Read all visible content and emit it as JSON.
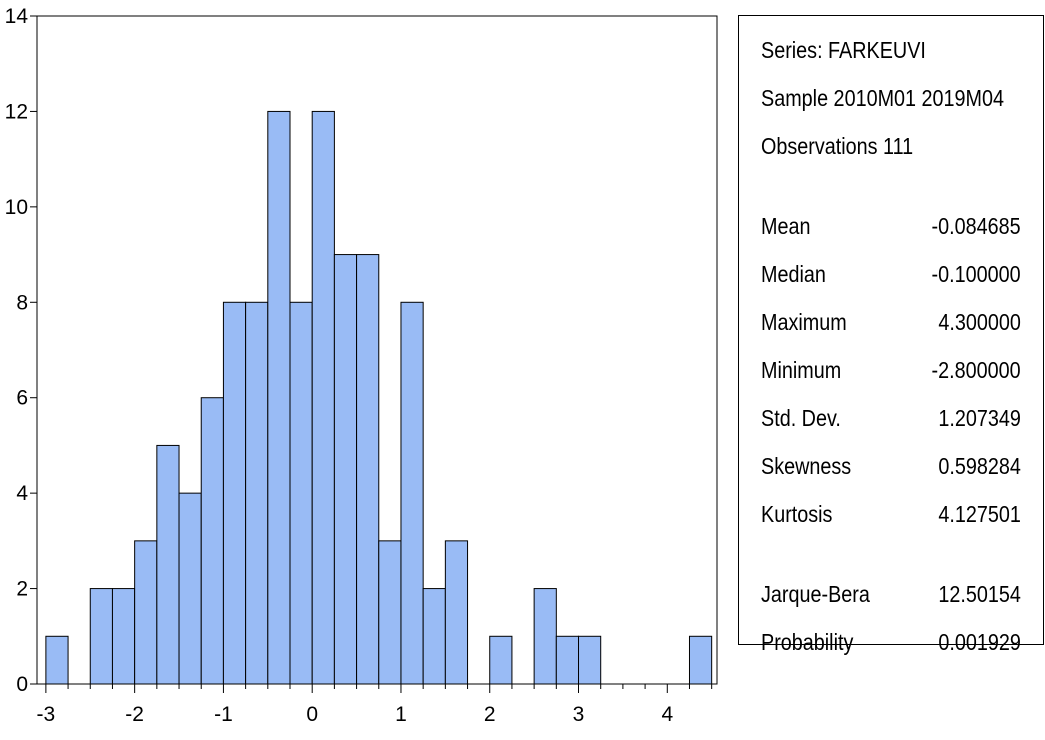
{
  "colors": {
    "bar_fill": "#99bbf5",
    "bar_stroke": "#000000",
    "axis": "#000000",
    "background": "#ffffff"
  },
  "chart_data": {
    "type": "bar",
    "subtype": "histogram",
    "bin_width": 0.25,
    "bins": [
      {
        "start": -3.0,
        "count": 1
      },
      {
        "start": -2.75,
        "count": 0
      },
      {
        "start": -2.5,
        "count": 2
      },
      {
        "start": -2.25,
        "count": 2
      },
      {
        "start": -2.0,
        "count": 3
      },
      {
        "start": -1.75,
        "count": 5
      },
      {
        "start": -1.5,
        "count": 4
      },
      {
        "start": -1.25,
        "count": 6
      },
      {
        "start": -1.0,
        "count": 8
      },
      {
        "start": -0.75,
        "count": 8
      },
      {
        "start": -0.5,
        "count": 12
      },
      {
        "start": -0.25,
        "count": 8
      },
      {
        "start": 0.0,
        "count": 12
      },
      {
        "start": 0.25,
        "count": 9
      },
      {
        "start": 0.5,
        "count": 9
      },
      {
        "start": 0.75,
        "count": 3
      },
      {
        "start": 1.0,
        "count": 8
      },
      {
        "start": 1.25,
        "count": 2
      },
      {
        "start": 1.5,
        "count": 3
      },
      {
        "start": 1.75,
        "count": 0
      },
      {
        "start": 2.0,
        "count": 1
      },
      {
        "start": 2.25,
        "count": 0
      },
      {
        "start": 2.5,
        "count": 2
      },
      {
        "start": 2.75,
        "count": 1
      },
      {
        "start": 3.0,
        "count": 1
      },
      {
        "start": 3.25,
        "count": 0
      },
      {
        "start": 3.5,
        "count": 0
      },
      {
        "start": 3.75,
        "count": 0
      },
      {
        "start": 4.0,
        "count": 0
      },
      {
        "start": 4.25,
        "count": 1
      }
    ],
    "xlim": [
      -3.1,
      4.56
    ],
    "ylim": [
      0,
      14
    ],
    "x_ticks": [
      "-3",
      "-2",
      "-1",
      "0",
      "1",
      "2",
      "3",
      "4"
    ],
    "x_tick_values": [
      -3,
      -2,
      -1,
      0,
      1,
      2,
      3,
      4
    ],
    "y_ticks": [
      "0",
      "2",
      "4",
      "6",
      "8",
      "10",
      "12",
      "14"
    ],
    "y_tick_values": [
      0,
      2,
      4,
      6,
      8,
      10,
      12,
      14
    ],
    "title": "",
    "xlabel": "",
    "ylabel": "",
    "grid": false
  },
  "stats": {
    "series": "Series: FARKEUVI",
    "sample": "Sample 2010M01 2019M04",
    "observations": "Observations 111",
    "rows": [
      {
        "label": "Mean",
        "value": "-0.084685"
      },
      {
        "label": "Median",
        "value": "-0.100000"
      },
      {
        "label": "Maximum",
        "value": "4.300000"
      },
      {
        "label": "Minimum",
        "value": "-2.800000"
      },
      {
        "label": "Std. Dev.",
        "value": "1.207349"
      },
      {
        "label": "Skewness",
        "value": "0.598284"
      },
      {
        "label": "Kurtosis",
        "value": "4.127501"
      }
    ],
    "tests": [
      {
        "label": "Jarque-Bera",
        "value": "12.50154"
      },
      {
        "label": "Probability",
        "value": "0.001929"
      }
    ]
  }
}
